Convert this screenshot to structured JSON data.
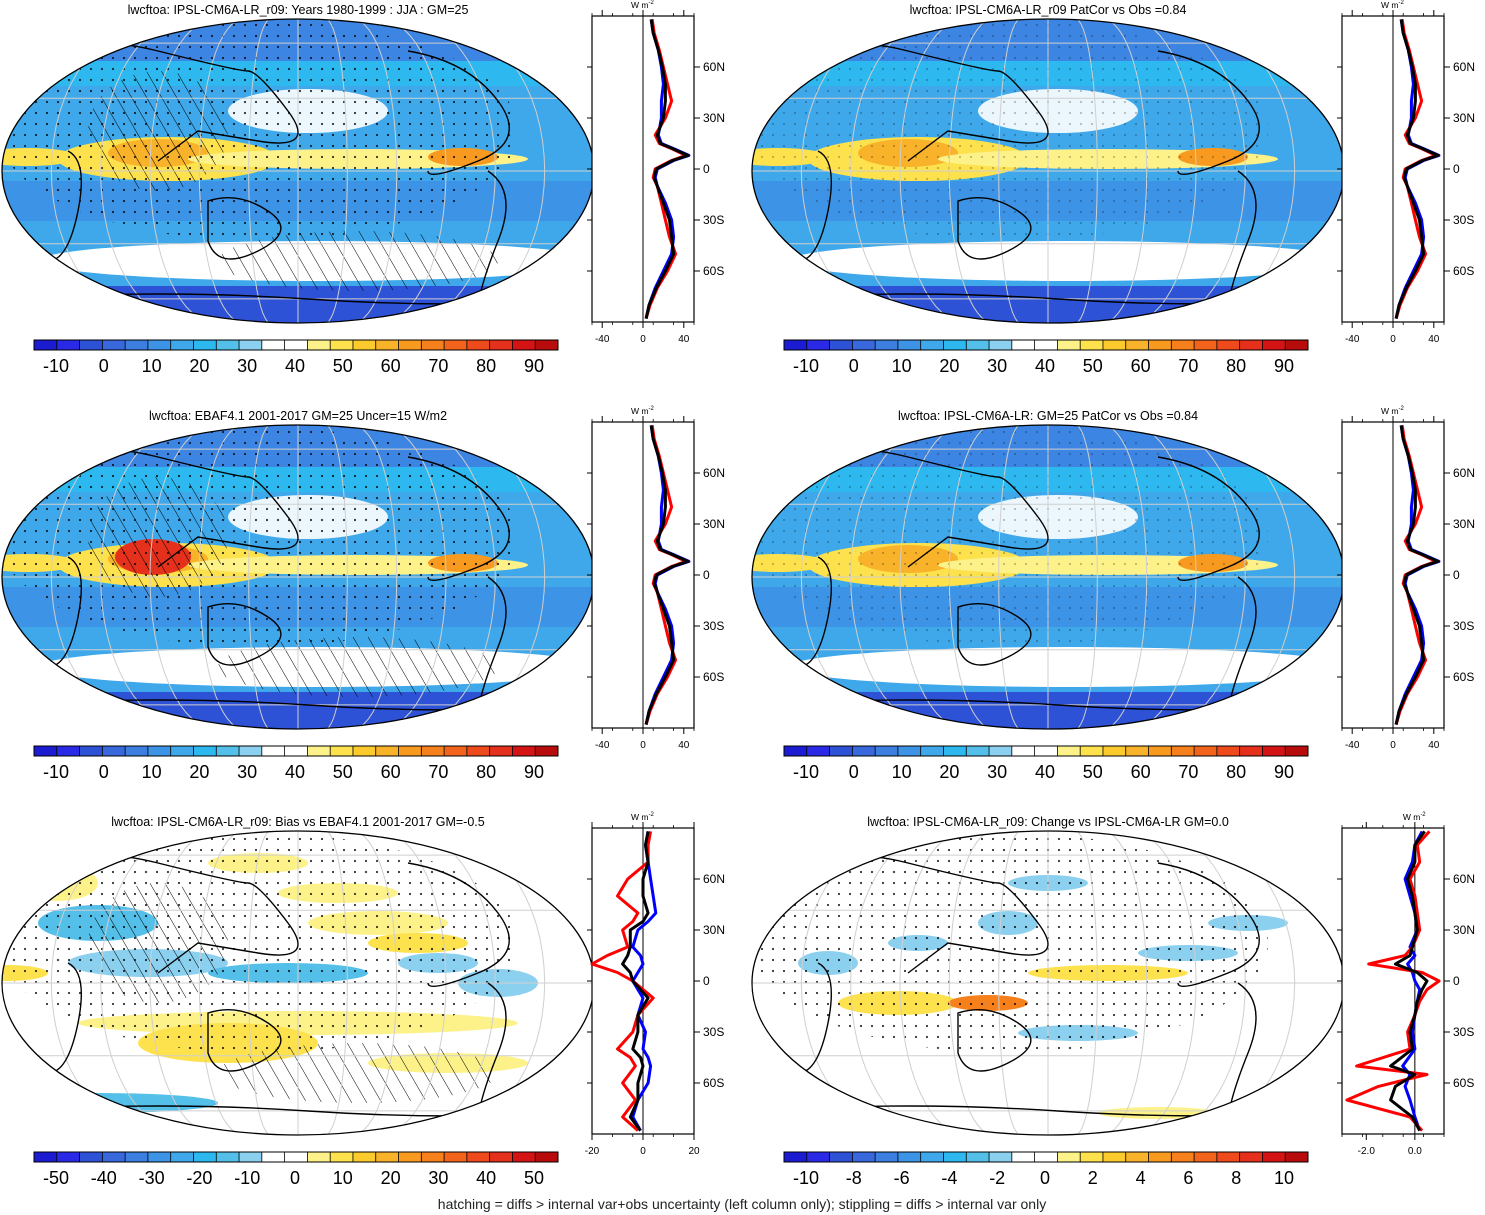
{
  "footer": "hatching = diffs > internal var+obs uncertainty (left column only); stippling = diffs > internal var only",
  "colormaps": {
    "abs": [
      "#1b1bd2",
      "#2a2ae6",
      "#2e52d6",
      "#3868dc",
      "#3d7fe0",
      "#3d93e6",
      "#3ea8ea",
      "#2db8ef",
      "#54bfe8",
      "#8cd0ef",
      "#ffffff",
      "#ffffff",
      "#fdf28a",
      "#fde24e",
      "#fbca2d",
      "#f9b32a",
      "#f79a1f",
      "#f5801c",
      "#f2641c",
      "#ee4a1c",
      "#e5301c",
      "#d41414",
      "#b80b0b"
    ],
    "diff": [
      "#1b1bd2",
      "#2a2ae6",
      "#2e52d6",
      "#3868dc",
      "#3d7fe0",
      "#3d93e6",
      "#3ea8ea",
      "#2db8ef",
      "#54bfe8",
      "#8cd0ef",
      "#ffffff",
      "#ffffff",
      "#fdf28a",
      "#fde24e",
      "#fbca2d",
      "#f9b32a",
      "#f79a1f",
      "#f5801c",
      "#f2641c",
      "#ee4a1c",
      "#e5301c",
      "#d41414",
      "#b80b0b"
    ]
  },
  "panels": [
    {
      "id": "model",
      "title": "lwcftoa: IPSL-CM6A-LR_r09: Years 1980-1999 : JJA : GM=25",
      "colorbar_labels": [
        "-10",
        "0",
        "10",
        "20",
        "30",
        "40",
        "50",
        "60",
        "70",
        "80",
        "90"
      ],
      "zonal_axis": {
        "ticks": [
          "-40",
          "0",
          "40"
        ],
        "range": [
          -50,
          50
        ],
        "units_text": "W m",
        "units_sup": "-2"
      },
      "lat_labels": [
        "60N",
        "30N",
        "0",
        "30S",
        "60S"
      ]
    },
    {
      "id": "model-vs-obs",
      "title": "lwcftoa: IPSL-CM6A-LR_r09 PatCor vs Obs =0.84",
      "colorbar_labels": [
        "-10",
        "0",
        "10",
        "20",
        "30",
        "40",
        "50",
        "60",
        "70",
        "80",
        "90"
      ],
      "zonal_axis": {
        "ticks": [
          "-40",
          "0",
          "40"
        ],
        "range": [
          -50,
          50
        ],
        "units_text": "W m",
        "units_sup": "-2"
      },
      "lat_labels": [
        "60N",
        "30N",
        "0",
        "30S",
        "60S"
      ]
    },
    {
      "id": "obs",
      "title": "lwcftoa: EBAF4.1 2001-2017 GM=25 Uncer=15 W/m2",
      "colorbar_labels": [
        "-10",
        "0",
        "10",
        "20",
        "30",
        "40",
        "50",
        "60",
        "70",
        "80",
        "90"
      ],
      "zonal_axis": {
        "ticks": [
          "-40",
          "0",
          "40"
        ],
        "range": [
          -50,
          50
        ],
        "units_text": "W m",
        "units_sup": "-2"
      },
      "lat_labels": [
        "60N",
        "30N",
        "0",
        "30S",
        "60S"
      ]
    },
    {
      "id": "reference-model",
      "title": "lwcftoa: IPSL-CM6A-LR: GM=25 PatCor vs Obs =0.84",
      "colorbar_labels": [
        "-10",
        "0",
        "10",
        "20",
        "30",
        "40",
        "50",
        "60",
        "70",
        "80",
        "90"
      ],
      "zonal_axis": {
        "ticks": [
          "-40",
          "0",
          "40"
        ],
        "range": [
          -50,
          50
        ],
        "units_text": "W m",
        "units_sup": "-2"
      },
      "lat_labels": [
        "60N",
        "30N",
        "0",
        "30S",
        "60S"
      ]
    },
    {
      "id": "bias",
      "title": "lwcftoa: IPSL-CM6A-LR_r09: Bias vs EBAF4.1 2001-2017 GM=-0.5",
      "colorbar_labels": [
        "-50",
        "-40",
        "-30",
        "-20",
        "-10",
        "0",
        "10",
        "20",
        "30",
        "40",
        "50"
      ],
      "zonal_axis": {
        "ticks": [
          "-20",
          "0",
          "20"
        ],
        "range": [
          -20,
          20
        ],
        "units_text": "W m",
        "units_sup": "-2"
      },
      "lat_labels": [
        "60N",
        "30N",
        "0",
        "30S",
        "60S"
      ]
    },
    {
      "id": "change",
      "title": "lwcftoa: IPSL-CM6A-LR_r09: Change vs IPSL-CM6A-LR GM=0.0",
      "colorbar_labels": [
        "-10",
        "-8",
        "-6",
        "-4",
        "-2",
        "0",
        "2",
        "4",
        "6",
        "8",
        "10"
      ],
      "zonal_axis": {
        "ticks": [
          "-2.0",
          "0.0"
        ],
        "range": [
          -3,
          1.2
        ],
        "units_text": "W m",
        "units_sup": "-2"
      },
      "lat_labels": [
        "60N",
        "30N",
        "0",
        "30S",
        "60S"
      ]
    }
  ],
  "chart_data": [
    {
      "type": "heatmap",
      "title": "lwcftoa: IPSL-CM6A-LR_r09: Years 1980-1999 : JJA : GM=25",
      "colorbar_ticks": [
        -10,
        0,
        10,
        20,
        30,
        40,
        50,
        60,
        70,
        80,
        90
      ],
      "zonal_mean": {
        "type": "line",
        "lat": [
          -88,
          -80,
          -70,
          -60,
          -50,
          -40,
          -30,
          -20,
          -10,
          -5,
          0,
          5,
          8,
          12,
          15,
          20,
          30,
          40,
          50,
          60,
          70,
          80,
          88
        ],
        "series": [
          {
            "color": "#0000ff",
            "values": [
              3,
              6,
              12,
              20,
              28,
              30,
              28,
              22,
              14,
              12,
              14,
              30,
              45,
              30,
              18,
              15,
              18,
              18,
              20,
              18,
              15,
              10,
              8
            ]
          },
          {
            "color": "#ff0000",
            "values": [
              3,
              7,
              14,
              24,
              32,
              26,
              22,
              18,
              14,
              10,
              12,
              28,
              42,
              28,
              16,
              12,
              22,
              28,
              24,
              20,
              16,
              11,
              9
            ]
          },
          {
            "color": "#000000",
            "values": [
              3,
              6,
              13,
              22,
              30,
              28,
              26,
              20,
              14,
              11,
              13,
              29,
              44,
              29,
              17,
              14,
              20,
              22,
              22,
              19,
              15,
              10,
              8
            ]
          }
        ]
      }
    },
    {
      "type": "heatmap",
      "title": "lwcftoa: IPSL-CM6A-LR_r09 PatCor vs Obs =0.84",
      "colorbar_ticks": [
        -10,
        0,
        10,
        20,
        30,
        40,
        50,
        60,
        70,
        80,
        90
      ],
      "zonal_mean": {
        "type": "line",
        "lat": [
          -88,
          -80,
          -70,
          -60,
          -50,
          -40,
          -30,
          -20,
          -10,
          -5,
          0,
          5,
          8,
          12,
          15,
          20,
          30,
          40,
          50,
          60,
          70,
          80,
          88
        ],
        "series": [
          {
            "color": "#0000ff",
            "values": [
              3,
              6,
              12,
              20,
              28,
              30,
              28,
              22,
              14,
              12,
              14,
              30,
              45,
              30,
              18,
              15,
              18,
              18,
              20,
              18,
              15,
              10,
              8
            ]
          },
          {
            "color": "#ff0000",
            "values": [
              3,
              7,
              14,
              24,
              32,
              26,
              22,
              18,
              14,
              10,
              12,
              28,
              42,
              28,
              16,
              12,
              22,
              28,
              24,
              20,
              16,
              11,
              9
            ]
          },
          {
            "color": "#000000",
            "values": [
              3,
              6,
              13,
              22,
              30,
              28,
              26,
              20,
              14,
              11,
              13,
              29,
              44,
              29,
              17,
              14,
              20,
              22,
              22,
              19,
              15,
              10,
              8
            ]
          }
        ]
      }
    },
    {
      "type": "heatmap",
      "title": "lwcftoa: EBAF4.1 2001-2017 GM=25 Uncer=15 W/m2",
      "colorbar_ticks": [
        -10,
        0,
        10,
        20,
        30,
        40,
        50,
        60,
        70,
        80,
        90
      ],
      "zonal_mean": {
        "type": "line",
        "lat": [
          -88,
          -80,
          -70,
          -60,
          -50,
          -40,
          -30,
          -20,
          -10,
          -5,
          0,
          5,
          8,
          12,
          15,
          20,
          30,
          40,
          50,
          60,
          70,
          80,
          88
        ],
        "series": [
          {
            "color": "#0000ff",
            "values": [
              3,
              6,
              12,
              20,
              28,
              30,
              28,
              22,
              14,
              12,
              14,
              30,
              45,
              30,
              18,
              15,
              18,
              18,
              20,
              18,
              15,
              10,
              8
            ]
          },
          {
            "color": "#ff0000",
            "values": [
              3,
              7,
              14,
              24,
              32,
              26,
              22,
              18,
              14,
              10,
              12,
              28,
              42,
              28,
              16,
              12,
              22,
              28,
              24,
              20,
              16,
              11,
              9
            ]
          },
          {
            "color": "#000000",
            "values": [
              3,
              6,
              13,
              22,
              30,
              28,
              26,
              20,
              14,
              11,
              13,
              29,
              44,
              29,
              17,
              14,
              20,
              22,
              22,
              19,
              15,
              10,
              8
            ]
          }
        ]
      }
    },
    {
      "type": "heatmap",
      "title": "lwcftoa: IPSL-CM6A-LR: GM=25 PatCor vs Obs =0.84",
      "colorbar_ticks": [
        -10,
        0,
        10,
        20,
        30,
        40,
        50,
        60,
        70,
        80,
        90
      ],
      "zonal_mean": {
        "type": "line",
        "lat": [
          -88,
          -80,
          -70,
          -60,
          -50,
          -40,
          -30,
          -20,
          -10,
          -5,
          0,
          5,
          8,
          12,
          15,
          20,
          30,
          40,
          50,
          60,
          70,
          80,
          88
        ],
        "series": [
          {
            "color": "#0000ff",
            "values": [
              3,
              6,
              12,
              20,
              28,
              30,
              28,
              22,
              14,
              12,
              14,
              30,
              45,
              30,
              18,
              15,
              18,
              18,
              20,
              18,
              15,
              10,
              8
            ]
          },
          {
            "color": "#ff0000",
            "values": [
              3,
              7,
              14,
              24,
              32,
              26,
              22,
              18,
              14,
              10,
              12,
              28,
              42,
              28,
              16,
              12,
              22,
              28,
              24,
              20,
              16,
              11,
              9
            ]
          },
          {
            "color": "#000000",
            "values": [
              3,
              6,
              13,
              22,
              30,
              28,
              26,
              20,
              14,
              11,
              13,
              29,
              44,
              29,
              17,
              14,
              20,
              22,
              22,
              19,
              15,
              10,
              8
            ]
          }
        ]
      }
    },
    {
      "type": "heatmap",
      "title": "lwcftoa: IPSL-CM6A-LR_r09: Bias vs EBAF4.1 2001-2017 GM=-0.5",
      "colorbar_ticks": [
        -50,
        -40,
        -30,
        -20,
        -10,
        0,
        10,
        20,
        30,
        40,
        50
      ],
      "zonal_mean": {
        "type": "line",
        "lat": [
          -88,
          -80,
          -70,
          -60,
          -50,
          -45,
          -40,
          -30,
          -20,
          -10,
          0,
          5,
          10,
          15,
          20,
          30,
          35,
          40,
          50,
          60,
          70,
          80,
          88
        ],
        "series": [
          {
            "color": "#0000ff",
            "values": [
              -1,
              -4,
              -2,
              2,
              3,
              2,
              0,
              1,
              -2,
              0,
              -4,
              -2,
              0,
              -1,
              -4,
              -2,
              2,
              5,
              4,
              3,
              2,
              1,
              2
            ]
          },
          {
            "color": "#ff0000",
            "values": [
              -2,
              -8,
              -3,
              -8,
              -3,
              -5,
              -10,
              -4,
              -2,
              4,
              -4,
              -10,
              -20,
              -14,
              -6,
              -8,
              -4,
              -2,
              -10,
              -6,
              2,
              2,
              3
            ]
          },
          {
            "color": "#000000",
            "values": [
              -1,
              -5,
              -2,
              -2,
              0,
              -1,
              -4,
              -2,
              -2,
              2,
              -4,
              -5,
              -8,
              -6,
              -5,
              -5,
              0,
              2,
              0,
              0,
              2,
              1,
              2
            ]
          }
        ]
      }
    },
    {
      "type": "heatmap",
      "title": "lwcftoa: IPSL-CM6A-LR_r09: Change vs IPSL-CM6A-LR GM=0.0",
      "colorbar_ticks": [
        -10,
        -8,
        -6,
        -4,
        -2,
        0,
        2,
        4,
        6,
        8,
        10
      ],
      "zonal_mean": {
        "type": "line",
        "lat": [
          -88,
          -80,
          -70,
          -62,
          -55,
          -50,
          -40,
          -30,
          -20,
          -12,
          -5,
          0,
          5,
          10,
          15,
          20,
          30,
          40,
          50,
          60,
          70,
          80,
          88
        ],
        "series": [
          {
            "color": "#0000ff",
            "values": [
              0.2,
              0.0,
              -0.2,
              -0.4,
              -0.2,
              -0.5,
              0.0,
              -0.1,
              0.0,
              0.1,
              0.2,
              0.0,
              -0.1,
              -0.3,
              0.0,
              -0.2,
              0.1,
              0.0,
              -0.2,
              -0.4,
              -0.1,
              0.0,
              0.3
            ]
          },
          {
            "color": "#ff0000",
            "values": [
              0.3,
              -0.2,
              -2.8,
              -1.5,
              0.5,
              -2.4,
              -0.2,
              -0.3,
              0.0,
              0.2,
              0.5,
              1.0,
              0.3,
              -1.9,
              -0.4,
              -0.1,
              0.2,
              0.1,
              0.0,
              -0.2,
              0.2,
              0.1,
              0.6
            ]
          },
          {
            "color": "#000000",
            "values": [
              0.2,
              -0.1,
              -1.0,
              -0.8,
              0.0,
              -1.0,
              -0.1,
              -0.2,
              0.0,
              0.1,
              0.3,
              0.5,
              0.1,
              -0.8,
              -0.2,
              -0.1,
              0.1,
              0.0,
              -0.1,
              -0.3,
              0.0,
              0.0,
              0.4
            ]
          }
        ]
      }
    }
  ]
}
